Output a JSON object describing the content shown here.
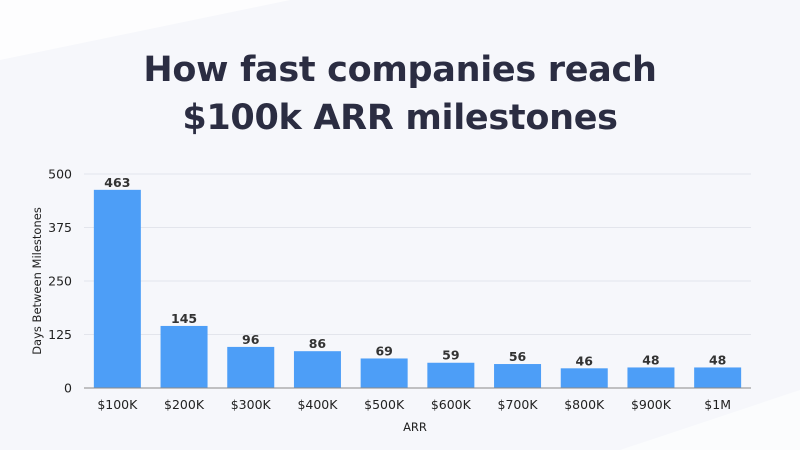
{
  "title_lines": [
    "How fast companies reach",
    "$100k ARR milestones"
  ],
  "colors": {
    "bar": "#4d9ef7",
    "grid": "#e3e5ec",
    "axis": "#8a8a8a",
    "title": "#2b2d42"
  },
  "chart_data": {
    "type": "bar",
    "title": "How fast companies reach $100k ARR milestones",
    "xlabel": "ARR",
    "ylabel": "Days Between Milestones",
    "categories": [
      "$100K",
      "$200K",
      "$300K",
      "$400K",
      "$500K",
      "$600K",
      "$700K",
      "$800K",
      "$900K",
      "$1M"
    ],
    "values": [
      463,
      145,
      96,
      86,
      69,
      59,
      56,
      46,
      48,
      48
    ],
    "ylim": [
      0,
      500
    ],
    "yticks": [
      0,
      125,
      250,
      375,
      500
    ],
    "grid": true,
    "legend": "none"
  }
}
